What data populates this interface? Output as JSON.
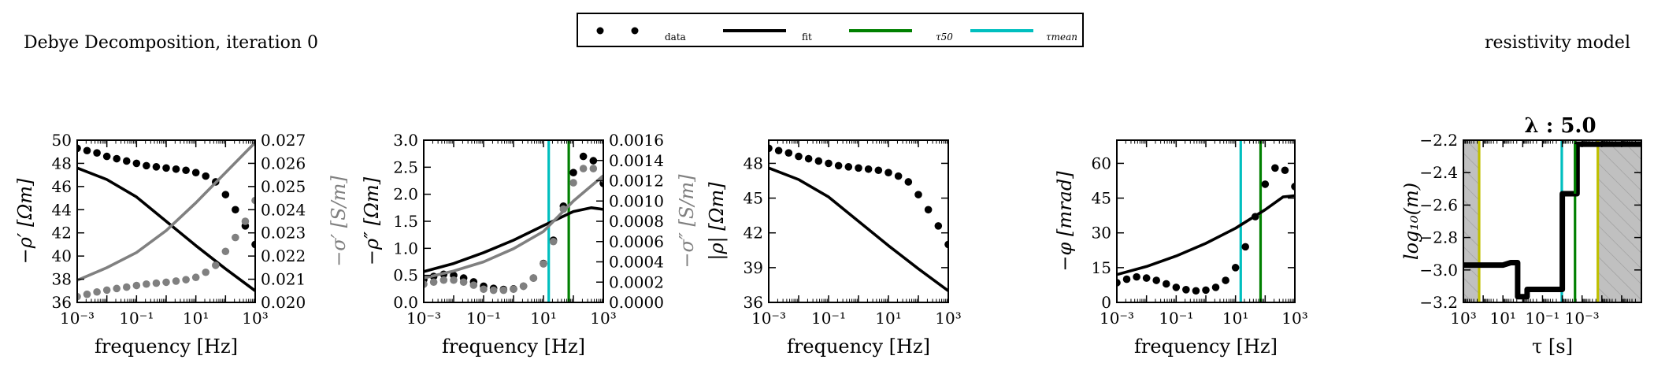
{
  "figure": {
    "title_left": "Debye Decomposition, iteration 0",
    "title_right": "resistivity model",
    "legend": [
      {
        "label": "data",
        "kind": "markers",
        "color": "#000000"
      },
      {
        "label": "fit",
        "kind": "line",
        "color": "#000000"
      },
      {
        "label": "τ50",
        "kind": "line",
        "color": "#008000"
      },
      {
        "label": "τmean",
        "kind": "line",
        "color": "#00bfbf"
      }
    ],
    "colors": {
      "data": "#000000",
      "fit": "#000000",
      "gray": "#808080",
      "tau50": "#008000",
      "taumean": "#00bfbf",
      "tau_limits": "#bfbf00",
      "shade": "#c0c0c0"
    }
  },
  "chart_data": [
    {
      "type": "scatter",
      "xlabel": "frequency [Hz]",
      "ylabel": "−ρ′ [Ωm]",
      "ylabel_right": "−σ′ [S/m]",
      "xscale": "log",
      "xlim": [
        0.001,
        1000
      ],
      "xticks": [
        0.001,
        0.1,
        10,
        1000
      ],
      "xticklabels": [
        "10⁻³",
        "10⁻¹",
        "10¹",
        "10³"
      ],
      "ylim": [
        36,
        50
      ],
      "yticks": [
        36,
        38,
        40,
        42,
        44,
        46,
        48,
        50
      ],
      "yticklabels": [
        "36",
        "38",
        "40",
        "42",
        "44",
        "46",
        "48",
        "50"
      ],
      "ylim_right": [
        0.02,
        0.027
      ],
      "yticks_right": [
        0.02,
        0.021,
        0.022,
        0.023,
        0.024,
        0.025,
        0.026,
        0.027
      ],
      "yticklabels_right": [
        "0.020",
        "0.021",
        "0.022",
        "0.023",
        "0.024",
        "0.025",
        "0.026",
        "0.027"
      ],
      "series": [
        {
          "name": "data",
          "kind": "markers",
          "color": "#000000",
          "x": [
            0.001,
            0.00215,
            0.00464,
            0.01,
            0.0215,
            0.0464,
            0.1,
            0.215,
            0.464,
            1,
            2.15,
            4.64,
            10,
            21.5,
            46.4,
            100,
            215,
            464,
            1000
          ],
          "y": [
            49.3,
            49.1,
            48.9,
            48.6,
            48.4,
            48.2,
            48.0,
            47.8,
            47.7,
            47.6,
            47.5,
            47.4,
            47.2,
            46.9,
            46.4,
            45.3,
            44.0,
            42.6,
            41.0
          ]
        },
        {
          "name": "fit",
          "kind": "line",
          "color": "#000000",
          "x": [
            0.001,
            0.01,
            0.1,
            1,
            10,
            100,
            1000
          ],
          "y": [
            47.6,
            46.6,
            45.1,
            43.0,
            40.9,
            38.9,
            37.0
          ]
        },
        {
          "name": "σ′ data",
          "kind": "markers",
          "axis": "right",
          "color": "#808080",
          "x": [
            0.001,
            0.00215,
            0.00464,
            0.01,
            0.0215,
            0.0464,
            0.1,
            0.215,
            0.464,
            1,
            2.15,
            4.64,
            10,
            21.5,
            46.4,
            100,
            215,
            464,
            1000
          ],
          "y": [
            0.02025,
            0.02035,
            0.02045,
            0.02053,
            0.0206,
            0.02066,
            0.02073,
            0.02079,
            0.02083,
            0.02087,
            0.02092,
            0.02098,
            0.02108,
            0.0213,
            0.0216,
            0.0222,
            0.0228,
            0.0235,
            0.0244
          ]
        },
        {
          "name": "σ′ fit",
          "kind": "line",
          "axis": "right",
          "color": "#808080",
          "x": [
            0.001,
            0.01,
            0.1,
            1,
            10,
            100,
            1000
          ],
          "y": [
            0.02095,
            0.0215,
            0.02215,
            0.0231,
            0.0243,
            0.0256,
            0.0269
          ]
        }
      ]
    },
    {
      "type": "scatter",
      "xlabel": "frequency [Hz]",
      "ylabel": "−ρ″ [Ωm]",
      "ylabel_right": "−σ″ [S/m]",
      "xscale": "log",
      "xlim": [
        0.001,
        1000
      ],
      "xticks": [
        0.001,
        0.1,
        10,
        1000
      ],
      "xticklabels": [
        "10⁻³",
        "10⁻¹",
        "10¹",
        "10³"
      ],
      "ylim": [
        0,
        3
      ],
      "yticks": [
        0,
        0.5,
        1,
        1.5,
        2,
        2.5,
        3
      ],
      "yticklabels": [
        "0.0",
        "0.5",
        "1.0",
        "1.5",
        "2.0",
        "2.5",
        "3.0"
      ],
      "ylim_right": [
        0,
        0.0016
      ],
      "yticks_right": [
        0,
        0.0002,
        0.0004,
        0.0006,
        0.0008,
        0.001,
        0.0012,
        0.0014,
        0.0016
      ],
      "yticklabels_right": [
        "0.0000",
        "0.0002",
        "0.0004",
        "0.0006",
        "0.0008",
        "0.0010",
        "0.0012",
        "0.0014",
        "0.0016"
      ],
      "vlines": [
        {
          "x": 15,
          "color": "#00bfbf"
        },
        {
          "x": 70,
          "color": "#008000"
        }
      ],
      "series": [
        {
          "name": "data",
          "kind": "markers",
          "color": "#000000",
          "x": [
            0.001,
            0.00215,
            0.00464,
            0.01,
            0.0215,
            0.0464,
            0.1,
            0.215,
            0.464,
            1,
            2.15,
            4.64,
            10,
            21.5,
            46.4,
            100,
            215,
            464,
            1000
          ],
          "y": [
            0.42,
            0.48,
            0.52,
            0.5,
            0.45,
            0.38,
            0.3,
            0.26,
            0.24,
            0.25,
            0.3,
            0.45,
            0.72,
            1.15,
            1.78,
            2.4,
            2.7,
            2.62,
            2.2
          ]
        },
        {
          "name": "fit",
          "kind": "line",
          "color": "#000000",
          "x": [
            0.001,
            0.01,
            0.1,
            1,
            10,
            100,
            400,
            1000
          ],
          "y": [
            0.57,
            0.72,
            0.92,
            1.15,
            1.42,
            1.68,
            1.75,
            1.72
          ]
        },
        {
          "name": "σ″ data",
          "kind": "markers",
          "axis": "right",
          "color": "#808080",
          "x": [
            0.001,
            0.00215,
            0.00464,
            0.01,
            0.0215,
            0.0464,
            0.1,
            0.215,
            0.464,
            1,
            2.15,
            4.64,
            10,
            21.5,
            46.4,
            100,
            215,
            464,
            1000
          ],
          "y": [
            0.00018,
            0.0002,
            0.00022,
            0.00022,
            0.0002,
            0.00017,
            0.00013,
            0.00012,
            0.00012,
            0.00013,
            0.00016,
            0.00024,
            0.00038,
            0.0006,
            0.00092,
            0.00118,
            0.00132,
            0.00132,
            0.00122
          ]
        },
        {
          "name": "σ″ fit",
          "kind": "line",
          "axis": "right",
          "color": "#808080",
          "x": [
            0.001,
            0.01,
            0.1,
            1,
            10,
            100,
            1000
          ],
          "y": [
            0.00024,
            0.00031,
            0.0004,
            0.00053,
            0.0007,
            0.001,
            0.00125
          ]
        }
      ]
    },
    {
      "type": "scatter",
      "xlabel": "frequency [Hz]",
      "ylabel": "|ρ| [Ωm]",
      "xscale": "log",
      "xlim": [
        0.001,
        1000
      ],
      "xticks": [
        0.001,
        0.1,
        10,
        1000
      ],
      "xticklabels": [
        "10⁻³",
        "10⁻¹",
        "10¹",
        "10³"
      ],
      "ylim": [
        36,
        50
      ],
      "yticks": [
        36,
        39,
        42,
        45,
        48
      ],
      "yticklabels": [
        "36",
        "39",
        "42",
        "45",
        "48"
      ],
      "series": [
        {
          "name": "data",
          "kind": "markers",
          "color": "#000000",
          "x": [
            0.001,
            0.00215,
            0.00464,
            0.01,
            0.0215,
            0.0464,
            0.1,
            0.215,
            0.464,
            1,
            2.15,
            4.64,
            10,
            21.5,
            46.4,
            100,
            215,
            464,
            1000
          ],
          "y": [
            49.3,
            49.1,
            48.9,
            48.6,
            48.4,
            48.2,
            48.0,
            47.8,
            47.7,
            47.6,
            47.5,
            47.4,
            47.2,
            46.9,
            46.4,
            45.3,
            44.0,
            42.6,
            41.0
          ]
        },
        {
          "name": "fit",
          "kind": "line",
          "color": "#000000",
          "x": [
            0.001,
            0.01,
            0.1,
            1,
            10,
            100,
            1000
          ],
          "y": [
            47.6,
            46.6,
            45.1,
            43.0,
            40.9,
            38.9,
            37.0
          ]
        }
      ]
    },
    {
      "type": "scatter",
      "xlabel": "frequency [Hz]",
      "ylabel": "−φ [mrad]",
      "xscale": "log",
      "xlim": [
        0.001,
        1000
      ],
      "xticks": [
        0.001,
        0.1,
        10,
        1000
      ],
      "xticklabels": [
        "10⁻³",
        "10⁻¹",
        "10¹",
        "10³"
      ],
      "ylim": [
        0,
        70
      ],
      "yticks": [
        0,
        15,
        30,
        45,
        60
      ],
      "yticklabels": [
        "0",
        "15",
        "30",
        "45",
        "60"
      ],
      "vlines": [
        {
          "x": 15,
          "color": "#00bfbf"
        },
        {
          "x": 70,
          "color": "#008000"
        }
      ],
      "series": [
        {
          "name": "data",
          "kind": "markers",
          "color": "#000000",
          "x": [
            0.001,
            0.00215,
            0.00464,
            0.01,
            0.0215,
            0.0464,
            0.1,
            0.215,
            0.464,
            1,
            2.15,
            4.64,
            10,
            21.5,
            46.4,
            100,
            215,
            464,
            1000
          ],
          "y": [
            8.5,
            10,
            11,
            10.5,
            9.5,
            8,
            6.5,
            5.5,
            5,
            5.3,
            6.5,
            9.5,
            15,
            24,
            37,
            51,
            58,
            57,
            50
          ]
        },
        {
          "name": "fit",
          "kind": "line",
          "color": "#000000",
          "x": [
            0.001,
            0.01,
            0.1,
            1,
            10,
            100,
            400,
            1000
          ],
          "y": [
            12,
            15.5,
            20,
            25.5,
            32,
            40,
            45.5,
            46
          ]
        }
      ]
    },
    {
      "type": "line",
      "title": "λ : 5.0",
      "xlabel": "τ [s]",
      "ylabel": "log₁₀(m)",
      "xscale": "log",
      "xreversed": true,
      "xlim": [
        1000,
        1e-06
      ],
      "xticks": [
        1000,
        10,
        0.1,
        0.001
      ],
      "xticklabels": [
        "10³",
        "10¹",
        "10⁻¹",
        "10⁻³"
      ],
      "ylim": [
        -3.2,
        -2.2
      ],
      "yticks": [
        -3.2,
        -3.0,
        -2.8,
        -2.6,
        -2.4,
        -2.2
      ],
      "yticklabels": [
        "−3.2",
        "−3.0",
        "−2.8",
        "−2.6",
        "−2.4",
        "−2.2"
      ],
      "shaded_x": [
        [
          1000,
          160
        ],
        [
          0.00016,
          1e-06
        ]
      ],
      "vlines": [
        {
          "x": 160,
          "color": "#bfbf00"
        },
        {
          "x": 0.00016,
          "color": "#bfbf00"
        },
        {
          "x": 0.0106,
          "color": "#00bfbf"
        },
        {
          "x": 0.00227,
          "color": "#008000"
        }
      ],
      "series": [
        {
          "name": "model",
          "color": "#000000",
          "x": [
            1000,
            10,
            4,
            1.8,
            1.8,
            0.6,
            0.6,
            0.01,
            0.01,
            0.0018,
            0.0018,
            1e-06
          ],
          "y": [
            -2.97,
            -2.97,
            -2.955,
            -2.955,
            -3.165,
            -3.165,
            -3.12,
            -3.12,
            -2.53,
            -2.53,
            -2.225,
            -2.225
          ]
        }
      ]
    }
  ]
}
